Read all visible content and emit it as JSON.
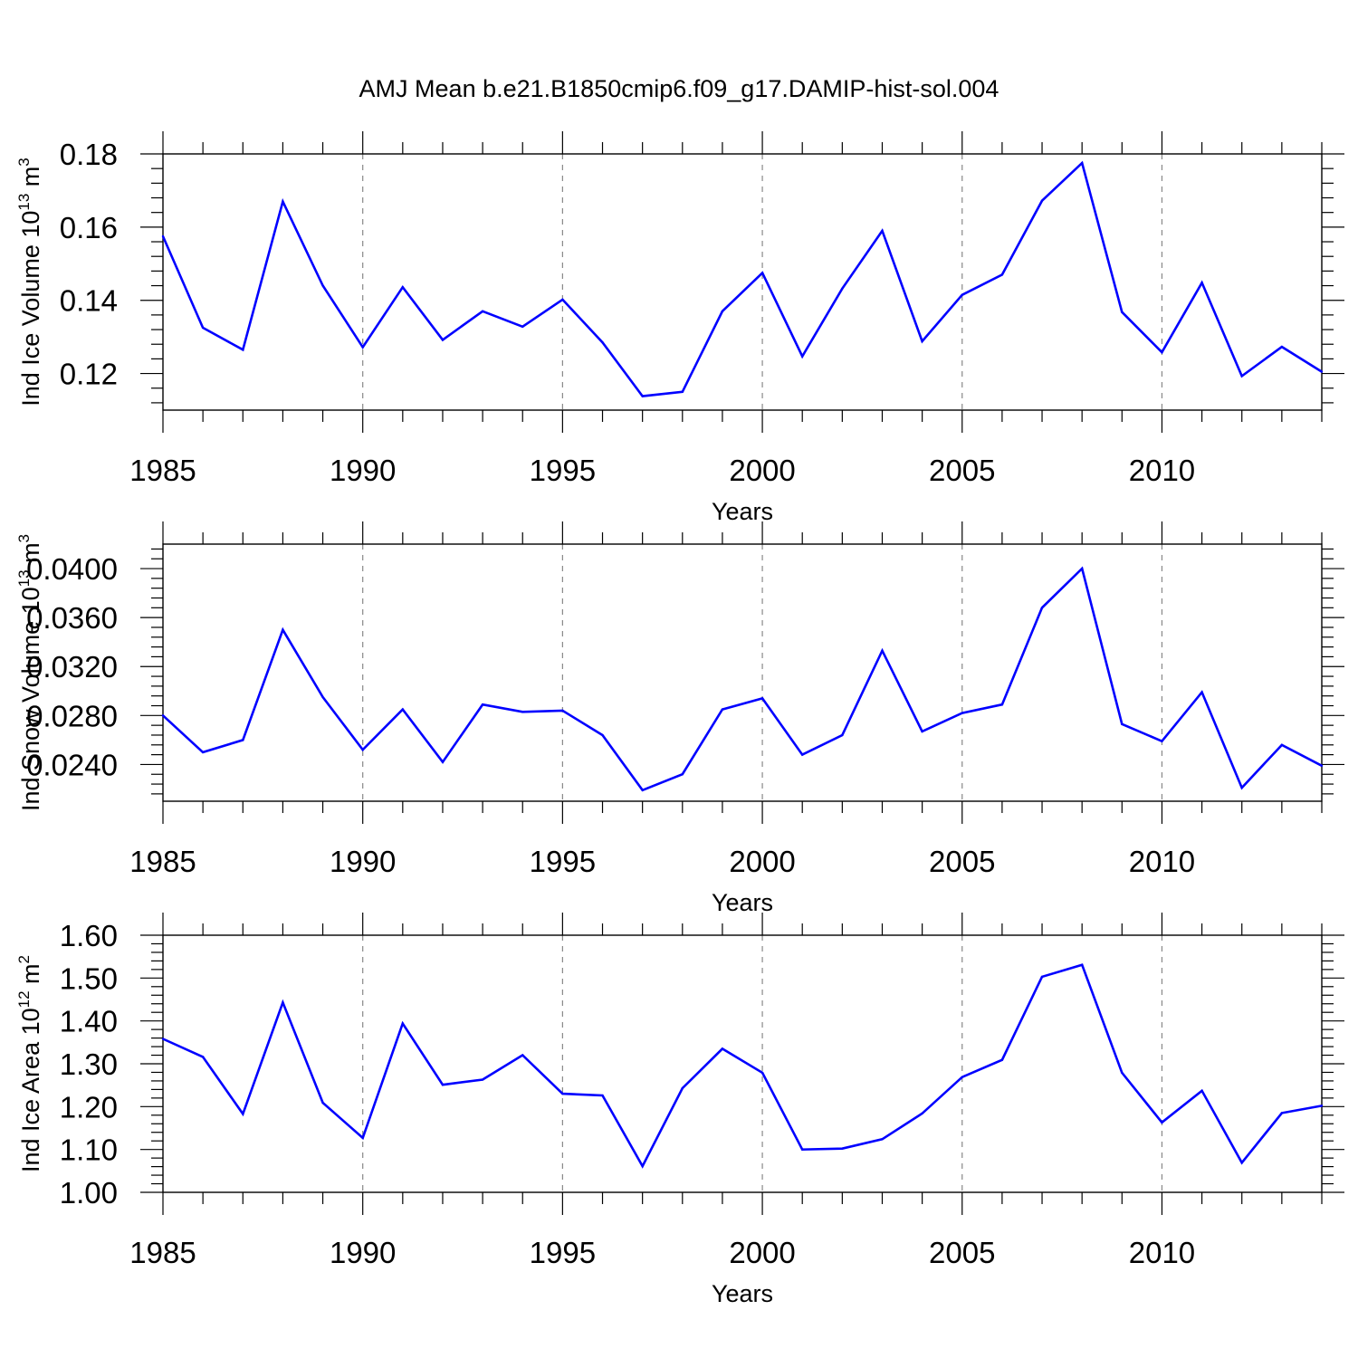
{
  "figure": {
    "title": "AMJ Mean b.e21.B1850cmip6.f09_g17.DAMIP-hist-sol.004"
  },
  "chart_data": [
    {
      "type": "line",
      "title": "AMJ Mean b.e21.B1850cmip6.f09_g17.DAMIP-hist-sol.004",
      "xlabel": "Years",
      "ylabel": "Ind Ice Volume 10",
      "ylabel_exp": "13",
      "ylabel_unit": "m",
      "ylabel_unit_exp": "3",
      "xlim": [
        1985,
        2014
      ],
      "ylim": [
        0.11,
        0.18
      ],
      "x_ticks": [
        1985,
        1990,
        1995,
        2000,
        2005,
        2010
      ],
      "y_ticks": [
        0.12,
        0.14,
        0.16,
        0.18
      ],
      "y_tick_labels": [
        "0.12",
        "0.14",
        "0.16",
        "0.18"
      ],
      "grid": "vertical dashed at major x ticks",
      "color": "#0000ff",
      "x": [
        1985,
        1986,
        1987,
        1988,
        1989,
        1990,
        1991,
        1992,
        1993,
        1994,
        1995,
        1996,
        1997,
        1998,
        1999,
        2000,
        2001,
        2002,
        2003,
        2004,
        2005,
        2006,
        2007,
        2008,
        2009,
        2010,
        2011,
        2012,
        2013,
        2014
      ],
      "values": [
        0.1575,
        0.1325,
        0.1265,
        0.167,
        0.144,
        0.1272,
        0.1436,
        0.1292,
        0.137,
        0.1328,
        0.1402,
        0.1285,
        0.1138,
        0.115,
        0.137,
        0.1475,
        0.1247,
        0.1432,
        0.159,
        0.1288,
        0.1415,
        0.147,
        0.1672,
        0.1775,
        0.1368,
        0.1258,
        0.1448,
        0.1193,
        0.1273,
        0.1205
      ]
    },
    {
      "type": "line",
      "xlabel": "Years",
      "ylabel": "Ind Snow Volume 10",
      "ylabel_exp": "13",
      "ylabel_unit": "m",
      "ylabel_unit_exp": "3",
      "xlim": [
        1985,
        2014
      ],
      "ylim": [
        0.021,
        0.042
      ],
      "x_ticks": [
        1985,
        1990,
        1995,
        2000,
        2005,
        2010
      ],
      "y_ticks": [
        0.024,
        0.028,
        0.032,
        0.036,
        0.04
      ],
      "y_tick_labels": [
        "0.0240",
        "0.0280",
        "0.0320",
        "0.0360",
        "0.0400"
      ],
      "grid": "vertical dashed at major x ticks",
      "color": "#0000ff",
      "x": [
        1985,
        1986,
        1987,
        1988,
        1989,
        1990,
        1991,
        1992,
        1993,
        1994,
        1995,
        1996,
        1997,
        1998,
        1999,
        2000,
        2001,
        2002,
        2003,
        2004,
        2005,
        2006,
        2007,
        2008,
        2009,
        2010,
        2011,
        2012,
        2013,
        2014
      ],
      "values": [
        0.028,
        0.025,
        0.026,
        0.035,
        0.0295,
        0.0252,
        0.0285,
        0.0242,
        0.0289,
        0.0283,
        0.0284,
        0.0264,
        0.0219,
        0.0232,
        0.0285,
        0.0294,
        0.0248,
        0.0264,
        0.0333,
        0.0267,
        0.0282,
        0.0289,
        0.0368,
        0.04,
        0.0273,
        0.0259,
        0.0299,
        0.0221,
        0.0256,
        0.0239
      ]
    },
    {
      "type": "line",
      "xlabel": "Years",
      "ylabel": "Ind Ice Area 10",
      "ylabel_exp": "12",
      "ylabel_unit": "m",
      "ylabel_unit_exp": "2",
      "xlim": [
        1985,
        2014
      ],
      "ylim": [
        1.0,
        1.6
      ],
      "x_ticks": [
        1985,
        1990,
        1995,
        2000,
        2005,
        2010
      ],
      "y_ticks": [
        1.0,
        1.1,
        1.2,
        1.3,
        1.4,
        1.5,
        1.6
      ],
      "y_tick_labels": [
        "1.00",
        "1.10",
        "1.20",
        "1.30",
        "1.40",
        "1.50",
        "1.60"
      ],
      "grid": "vertical dashed at major x ticks",
      "color": "#0000ff",
      "x": [
        1985,
        1986,
        1987,
        1988,
        1989,
        1990,
        1991,
        1992,
        1993,
        1994,
        1995,
        1996,
        1997,
        1998,
        1999,
        2000,
        2001,
        2002,
        2003,
        2004,
        2005,
        2006,
        2007,
        2008,
        2009,
        2010,
        2011,
        2012,
        2013,
        2014
      ],
      "values": [
        1.358,
        1.316,
        1.183,
        1.443,
        1.209,
        1.127,
        1.394,
        1.251,
        1.263,
        1.32,
        1.23,
        1.226,
        1.061,
        1.243,
        1.335,
        1.279,
        1.1,
        1.102,
        1.124,
        1.184,
        1.269,
        1.309,
        1.503,
        1.531,
        1.279,
        1.163,
        1.237,
        1.069,
        1.185,
        1.202
      ]
    }
  ]
}
